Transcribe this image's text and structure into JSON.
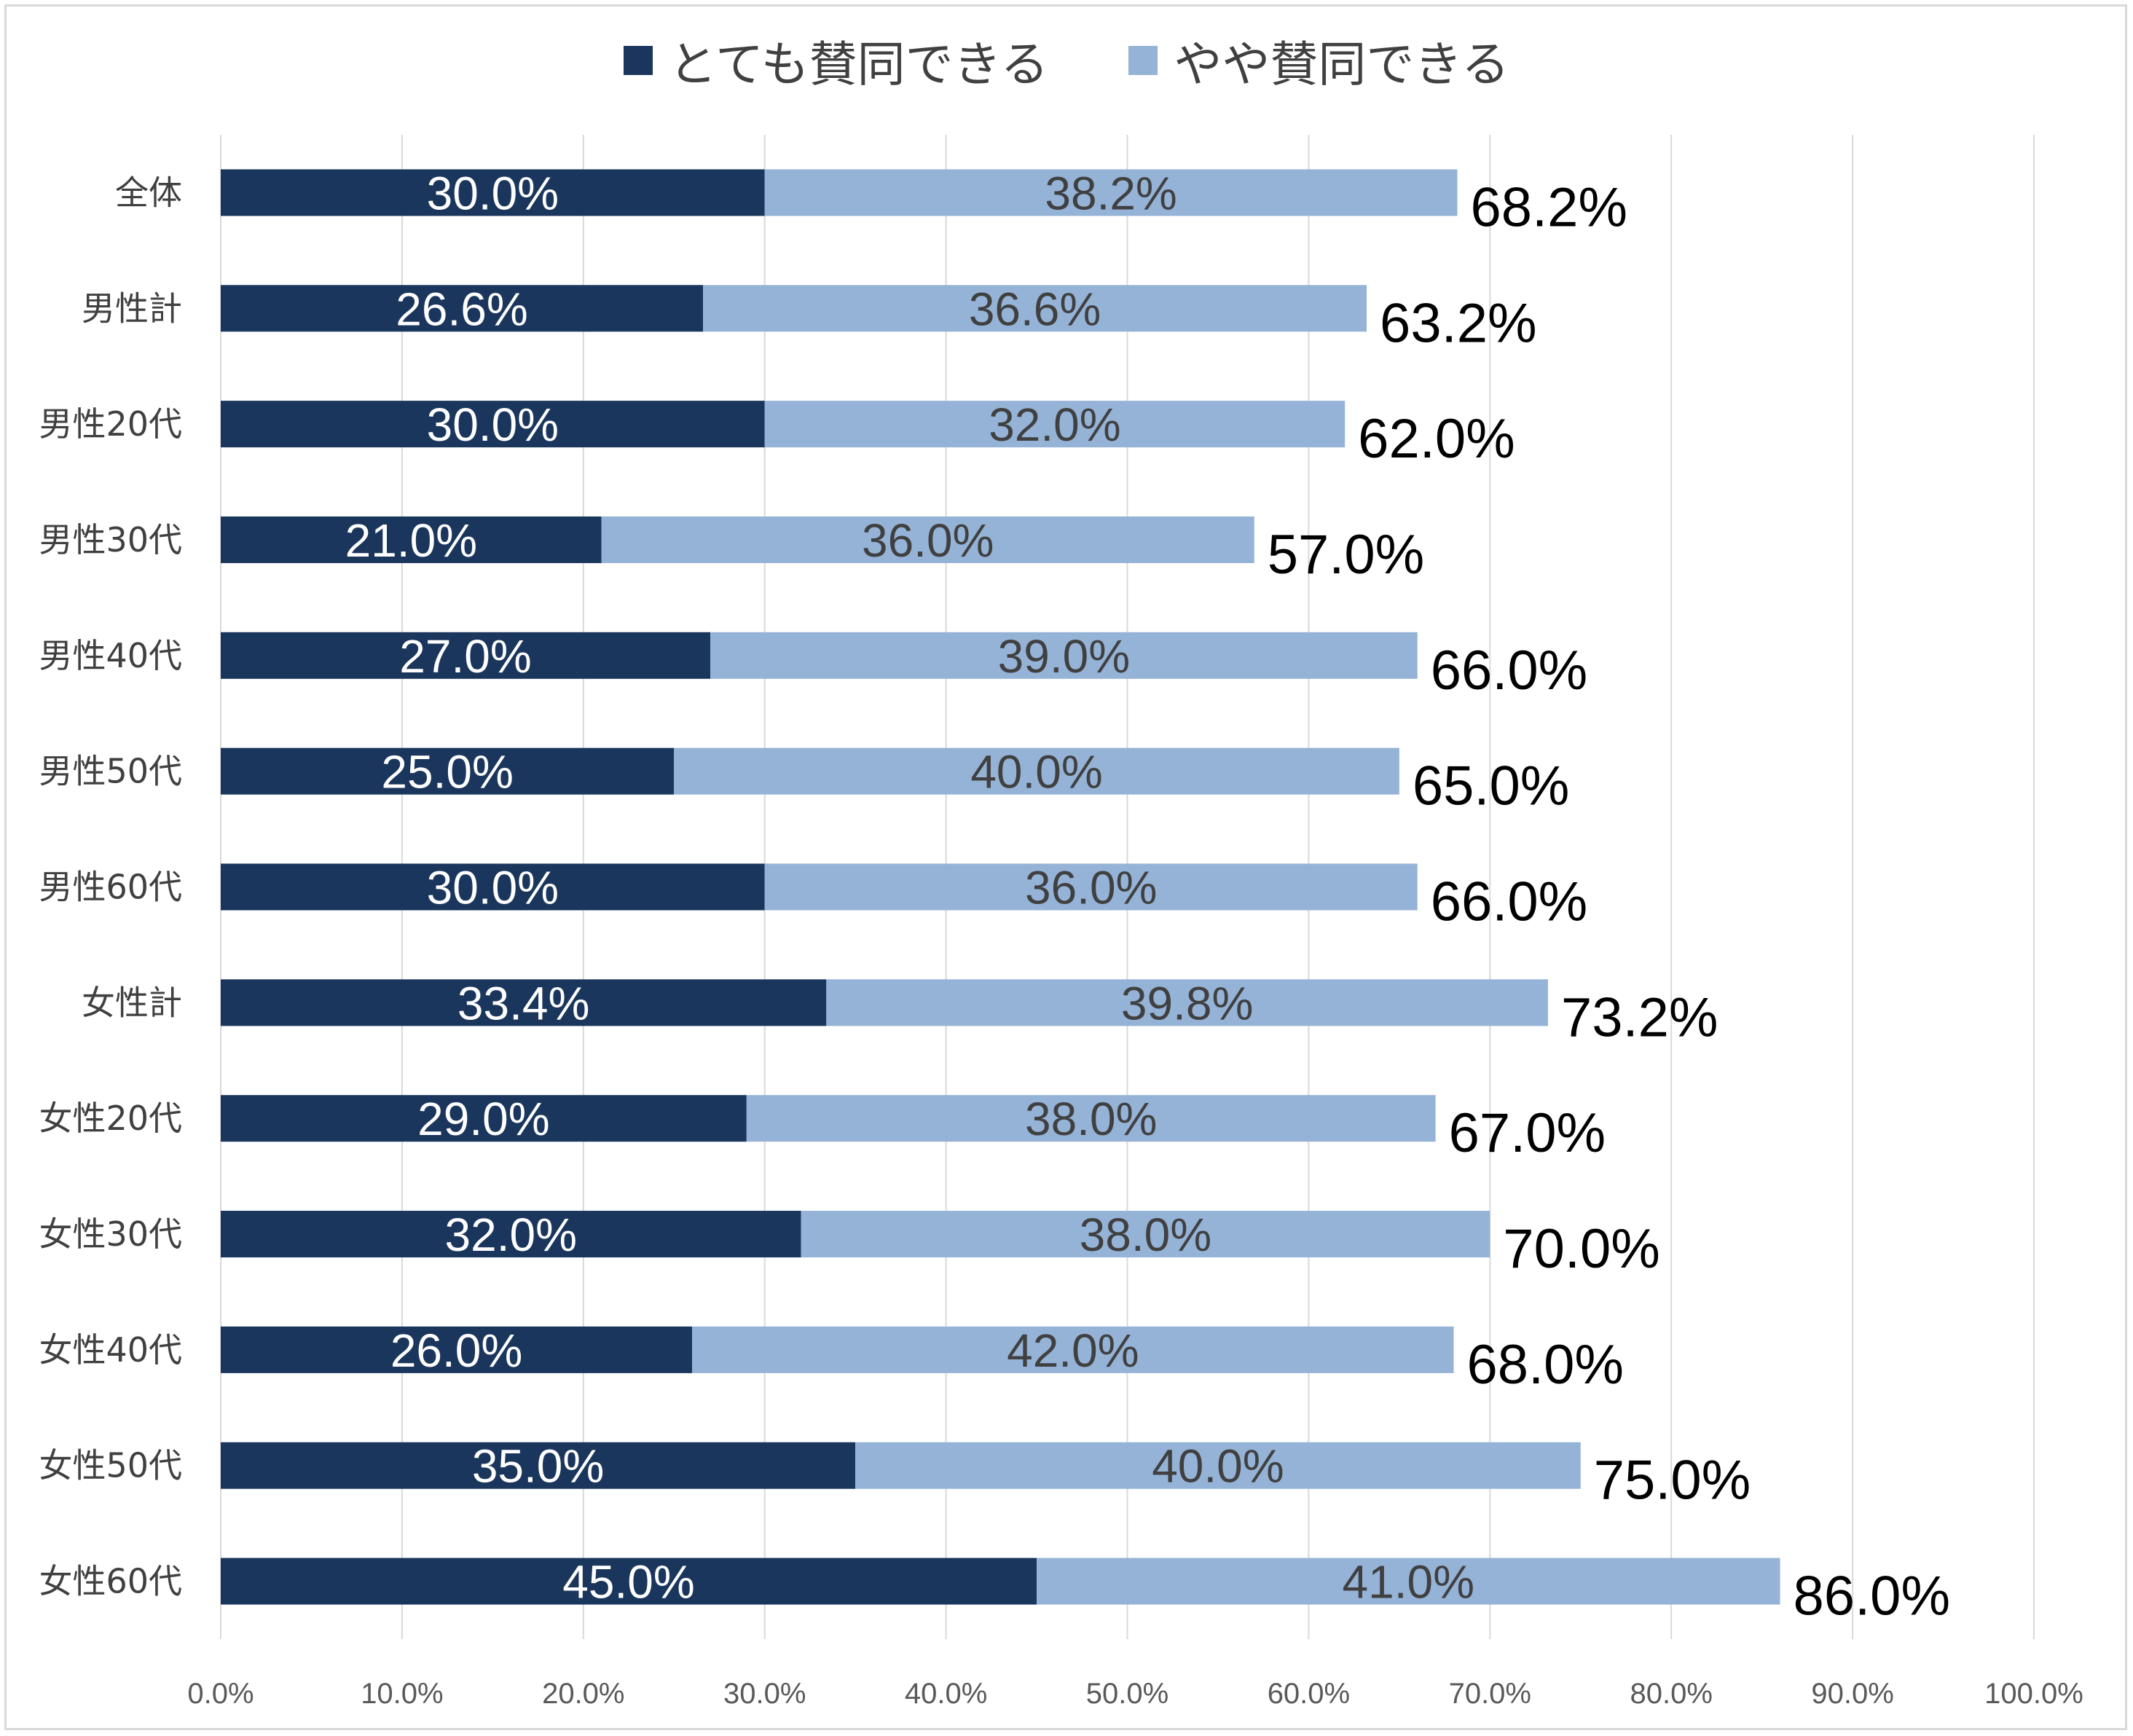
{
  "chart_data": {
    "type": "bar",
    "orientation": "horizontal",
    "stacked": true,
    "categories": [
      "全体",
      "男性計",
      "男性20代",
      "男性30代",
      "男性40代",
      "男性50代",
      "男性60代",
      "女性計",
      "女性20代",
      "女性30代",
      "女性40代",
      "女性50代",
      "女性60代"
    ],
    "series": [
      {
        "name": "とても賛同できる",
        "color": "#1b365d",
        "values": [
          30.0,
          26.6,
          30.0,
          21.0,
          27.0,
          25.0,
          30.0,
          33.4,
          29.0,
          32.0,
          26.0,
          35.0,
          45.0
        ],
        "labels": [
          "30.0%",
          "26.6%",
          "30.0%",
          "21.0%",
          "27.0%",
          "25.0%",
          "30.0%",
          "33.4%",
          "29.0%",
          "32.0%",
          "26.0%",
          "35.0%",
          "45.0%"
        ]
      },
      {
        "name": "やや賛同できる",
        "color": "#95b3d7",
        "values": [
          38.2,
          36.6,
          32.0,
          36.0,
          39.0,
          40.0,
          36.0,
          39.8,
          38.0,
          38.0,
          42.0,
          40.0,
          41.0
        ],
        "labels": [
          "38.2%",
          "36.6%",
          "32.0%",
          "36.0%",
          "39.0%",
          "40.0%",
          "36.0%",
          "39.8%",
          "38.0%",
          "38.0%",
          "42.0%",
          "40.0%",
          "41.0%"
        ]
      }
    ],
    "totals": [
      68.2,
      63.2,
      62.0,
      57.0,
      66.0,
      65.0,
      66.0,
      73.2,
      67.0,
      70.0,
      68.0,
      75.0,
      86.0
    ],
    "total_labels": [
      "68.2%",
      "63.2%",
      "62.0%",
      "57.0%",
      "66.0%",
      "65.0%",
      "66.0%",
      "73.2%",
      "67.0%",
      "70.0%",
      "68.0%",
      "75.0%",
      "86.0%"
    ],
    "xlim": [
      0,
      100
    ],
    "xticks": [
      "0.0%",
      "10.0%",
      "20.0%",
      "30.0%",
      "40.0%",
      "50.0%",
      "60.0%",
      "70.0%",
      "80.0%",
      "90.0%",
      "100.0%"
    ],
    "grid": "vertical",
    "legend_position": "top"
  }
}
